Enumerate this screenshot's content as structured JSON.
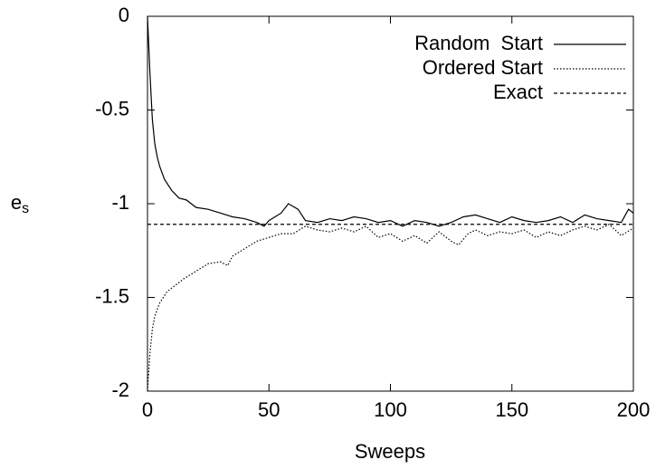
{
  "chart_data": {
    "type": "line",
    "xlabel": "Sweeps",
    "ylabel": {
      "main": "e",
      "sub": "s"
    },
    "xlim": [
      0,
      200
    ],
    "xticks": [
      0,
      50,
      100,
      150,
      200
    ],
    "ylim": [
      -2,
      0
    ],
    "yticks": [
      -2,
      -1.5,
      -1,
      -0.5,
      0
    ],
    "legend": "upper-right",
    "series": [
      {
        "name": "Random  Start",
        "color": "#000000",
        "dash": "solid",
        "x": [
          0,
          1,
          2,
          3,
          4,
          5,
          7,
          10,
          13,
          16,
          20,
          25,
          30,
          35,
          40,
          45,
          48,
          50,
          55,
          58,
          62,
          65,
          70,
          75,
          80,
          85,
          90,
          95,
          100,
          105,
          110,
          115,
          120,
          125,
          130,
          135,
          140,
          145,
          150,
          155,
          160,
          165,
          170,
          175,
          180,
          185,
          190,
          195,
          198,
          200
        ],
        "values": [
          0,
          -0.3,
          -0.55,
          -0.68,
          -0.75,
          -0.8,
          -0.87,
          -0.93,
          -0.97,
          -0.98,
          -1.02,
          -1.03,
          -1.05,
          -1.07,
          -1.08,
          -1.1,
          -1.12,
          -1.09,
          -1.05,
          -1.0,
          -1.03,
          -1.09,
          -1.1,
          -1.08,
          -1.09,
          -1.07,
          -1.08,
          -1.1,
          -1.09,
          -1.12,
          -1.09,
          -1.1,
          -1.12,
          -1.1,
          -1.07,
          -1.06,
          -1.08,
          -1.1,
          -1.07,
          -1.09,
          -1.1,
          -1.09,
          -1.07,
          -1.1,
          -1.06,
          -1.08,
          -1.09,
          -1.1,
          -1.03,
          -1.05
        ]
      },
      {
        "name": "Ordered Start",
        "color": "#000000",
        "dash": "dotted",
        "x": [
          0,
          1,
          2,
          3,
          5,
          8,
          12,
          15,
          20,
          25,
          30,
          33,
          35,
          40,
          45,
          50,
          55,
          60,
          65,
          70,
          75,
          80,
          85,
          90,
          95,
          100,
          105,
          110,
          115,
          120,
          125,
          128,
          132,
          135,
          140,
          145,
          150,
          155,
          160,
          165,
          170,
          175,
          180,
          185,
          190,
          195,
          200
        ],
        "values": [
          -2,
          -1.8,
          -1.67,
          -1.6,
          -1.53,
          -1.47,
          -1.43,
          -1.4,
          -1.36,
          -1.32,
          -1.31,
          -1.33,
          -1.28,
          -1.24,
          -1.2,
          -1.18,
          -1.16,
          -1.16,
          -1.12,
          -1.14,
          -1.15,
          -1.13,
          -1.15,
          -1.12,
          -1.18,
          -1.16,
          -1.2,
          -1.17,
          -1.21,
          -1.15,
          -1.2,
          -1.22,
          -1.16,
          -1.14,
          -1.17,
          -1.15,
          -1.16,
          -1.14,
          -1.18,
          -1.15,
          -1.17,
          -1.14,
          -1.12,
          -1.14,
          -1.11,
          -1.17,
          -1.13
        ]
      },
      {
        "name": "Exact",
        "color": "#000000",
        "dash": "dashed",
        "x": [
          0,
          200
        ],
        "values": [
          -1.11,
          -1.11
        ]
      }
    ]
  }
}
